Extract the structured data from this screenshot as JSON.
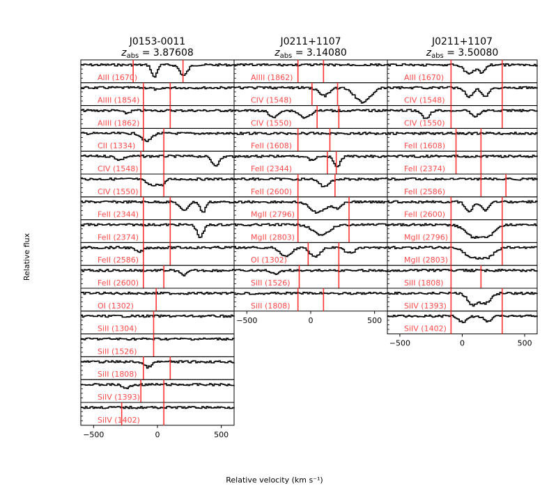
{
  "colors": {
    "label": "#ff4a4a",
    "marker": "#ff3333",
    "spectrum": "#000000"
  },
  "xlabel": "Relative velocity (km s⁻¹)",
  "ylabel": "Relative flux",
  "chart_data": [
    {
      "type": "line",
      "title_name": "J0153-0011",
      "z_prefix": "z",
      "z_sub": "abs",
      "z_value": " = 3.87608",
      "xlim": [
        -600,
        600
      ],
      "xticks": [
        "-500",
        "0",
        "500"
      ],
      "panels": [
        {
          "label": "AlII (1670)",
          "markers": [
            -190,
            200
          ],
          "absorptions": [
            [
              -30,
              0.7,
              20
            ],
            [
              200,
              0.6,
              30
            ]
          ]
        },
        {
          "label": "AlIII (1854)",
          "markers": [
            -110,
            100
          ],
          "absorptions": [
            [
              0,
              0.12,
              30
            ]
          ]
        },
        {
          "label": "AlIII (1862)",
          "markers": [
            -110,
            100
          ],
          "absorptions": [
            [
              -250,
              0.15,
              25
            ]
          ]
        },
        {
          "label": "CII (1334)",
          "markers": [
            -110,
            50
          ],
          "absorptions": [
            [
              -90,
              0.45,
              35
            ]
          ]
        },
        {
          "label": "CIV (1548)",
          "markers": [
            -130,
            50
          ],
          "absorptions": [
            [
              -300,
              0.2,
              30
            ],
            [
              450,
              0.5,
              30
            ]
          ]
        },
        {
          "label": "CIV (1550)",
          "markers": [
            -130,
            50
          ],
          "absorptions": [
            [
              -50,
              0.35,
              40
            ],
            [
              30,
              0.3,
              25
            ]
          ]
        },
        {
          "label": "FeII (2344)",
          "markers": [
            -110,
            100
          ],
          "absorptions": [
            [
              200,
              0.5,
              30
            ],
            [
              350,
              0.6,
              20
            ]
          ]
        },
        {
          "label": "FeII (2374)",
          "markers": [
            -110,
            100
          ],
          "absorptions": [
            [
              330,
              0.7,
              25
            ]
          ]
        },
        {
          "label": "FeII (2586)",
          "markers": [
            -110,
            100
          ],
          "absorptions": [
            [
              -150,
              0.25,
              30
            ]
          ]
        },
        {
          "label": "FeII (2600)",
          "markers": [
            -110,
            50
          ],
          "absorptions": [
            [
              200,
              0.25,
              30
            ]
          ]
        },
        {
          "label": "OI (1302)",
          "markers": [
            -10
          ],
          "absorptions": []
        },
        {
          "label": "SiII (1304)",
          "markers": [
            -30
          ],
          "absorptions": []
        },
        {
          "label": "SiII (1526)",
          "markers": [
            -30
          ],
          "absorptions": []
        },
        {
          "label": "SiII (1808)",
          "markers": [
            -110,
            100
          ],
          "absorptions": [
            [
              -80,
              0.3,
              30
            ]
          ]
        },
        {
          "label": "SiIV (1393)",
          "markers": [
            -130,
            50
          ],
          "absorptions": [
            [
              -250,
              0.2,
              30
            ]
          ]
        },
        {
          "label": "SiIV (1402)",
          "markers": [
            -280,
            50
          ],
          "absorptions": []
        }
      ]
    },
    {
      "type": "line",
      "title_name": "J0211+1107",
      "z_prefix": "z",
      "z_sub": "abs",
      "z_value": " = 3.14080",
      "xlim": [
        -600,
        600
      ],
      "xticks": [
        "-500",
        "0",
        "500"
      ],
      "panels": [
        {
          "label": "AlIII (1862)",
          "markers": [
            -100,
            100
          ],
          "absorptions": []
        },
        {
          "label": "CIV (1548)",
          "markers": [
            10,
            210
          ],
          "absorptions": [
            [
              100,
              0.45,
              40
            ],
            [
              400,
              0.8,
              60
            ]
          ]
        },
        {
          "label": "CIV (1550)",
          "markers": [
            50,
            220
          ],
          "absorptions": [
            [
              -300,
              0.4,
              30
            ],
            [
              -50,
              0.4,
              40
            ]
          ]
        },
        {
          "label": "FeII (1608)",
          "markers": [
            -100,
            150
          ],
          "absorptions": []
        },
        {
          "label": "FeII (2344)",
          "markers": [
            130,
            200
          ],
          "absorptions": [
            [
              200,
              0.6,
              25
            ],
            [
              0,
              0.2,
              30
            ]
          ]
        },
        {
          "label": "FeII (2600)",
          "markers": [
            -100,
            190
          ],
          "absorptions": [
            [
              100,
              0.4,
              40
            ]
          ]
        },
        {
          "label": "MgII (2796)",
          "markers": [
            -100,
            300
          ],
          "absorptions": [
            [
              50,
              0.6,
              60
            ],
            [
              200,
              0.35,
              30
            ]
          ]
        },
        {
          "label": "MgII (2803)",
          "markers": [
            -100,
            300
          ],
          "absorptions": [
            [
              80,
              0.6,
              60
            ]
          ]
        },
        {
          "label": "OI (1302)",
          "markers": [
            -20,
            220
          ],
          "absorptions": [
            [
              -200,
              0.5,
              40
            ],
            [
              30,
              0.5,
              40
            ],
            [
              300,
              0.3,
              40
            ]
          ]
        },
        {
          "label": "SiII (1526)",
          "markers": [
            -90,
            220
          ],
          "absorptions": [
            [
              -280,
              0.2,
              30
            ]
          ]
        },
        {
          "label": "SiII (1808)",
          "markers": [
            -100,
            100
          ],
          "absorptions": []
        }
      ]
    },
    {
      "type": "line",
      "title_name": "J0211+1107",
      "z_prefix": "z",
      "z_sub": "abs",
      "z_value": " = 3.50080",
      "xlim": [
        -600,
        600
      ],
      "xticks": [
        "-500",
        "0",
        "500"
      ],
      "panels": [
        {
          "label": "AlII (1670)",
          "markers": [
            -90,
            320
          ],
          "absorptions": [
            [
              50,
              0.5,
              40
            ],
            [
              150,
              0.4,
              25
            ]
          ]
        },
        {
          "label": "CIV (1548)",
          "markers": [
            -90,
            320
          ],
          "absorptions": [
            [
              50,
              0.5,
              30
            ],
            [
              180,
              0.45,
              30
            ]
          ]
        },
        {
          "label": "CIV (1550)",
          "markers": [
            -90,
            320
          ],
          "absorptions": [
            [
              -300,
              0.45,
              30
            ],
            [
              100,
              0.3,
              30
            ]
          ]
        },
        {
          "label": "FeII (1608)",
          "markers": [
            -50,
            150
          ],
          "absorptions": []
        },
        {
          "label": "FeII (2374)",
          "markers": [
            -50,
            150
          ],
          "absorptions": []
        },
        {
          "label": "FeII (2586)",
          "markers": [
            150,
            350
          ],
          "absorptions": []
        },
        {
          "label": "FeII (2600)",
          "markers": [
            -90,
            320
          ],
          "absorptions": [
            [
              50,
              0.5,
              30
            ],
            [
              180,
              0.45,
              30
            ]
          ]
        },
        {
          "label": "MgII (2796)",
          "markers": [
            -90,
            320
          ],
          "absorptions": [
            [
              80,
              0.65,
              60
            ],
            [
              200,
              0.6,
              50
            ]
          ]
        },
        {
          "label": "MgII (2803)",
          "markers": [
            -90,
            320
          ],
          "absorptions": [
            [
              80,
              0.55,
              60
            ],
            [
              200,
              0.5,
              50
            ]
          ]
        },
        {
          "label": "SiII (1808)",
          "markers": [
            -90,
            150
          ],
          "absorptions": []
        },
        {
          "label": "SiIV (1393)",
          "markers": [
            -90,
            320
          ],
          "absorptions": [
            [
              80,
              0.65,
              40
            ],
            [
              180,
              0.55,
              40
            ]
          ]
        },
        {
          "label": "SiIV (1402)",
          "markers": [
            -90,
            320
          ],
          "absorptions": [
            [
              0,
              0.35,
              30
            ],
            [
              200,
              0.3,
              30
            ]
          ]
        }
      ]
    }
  ]
}
